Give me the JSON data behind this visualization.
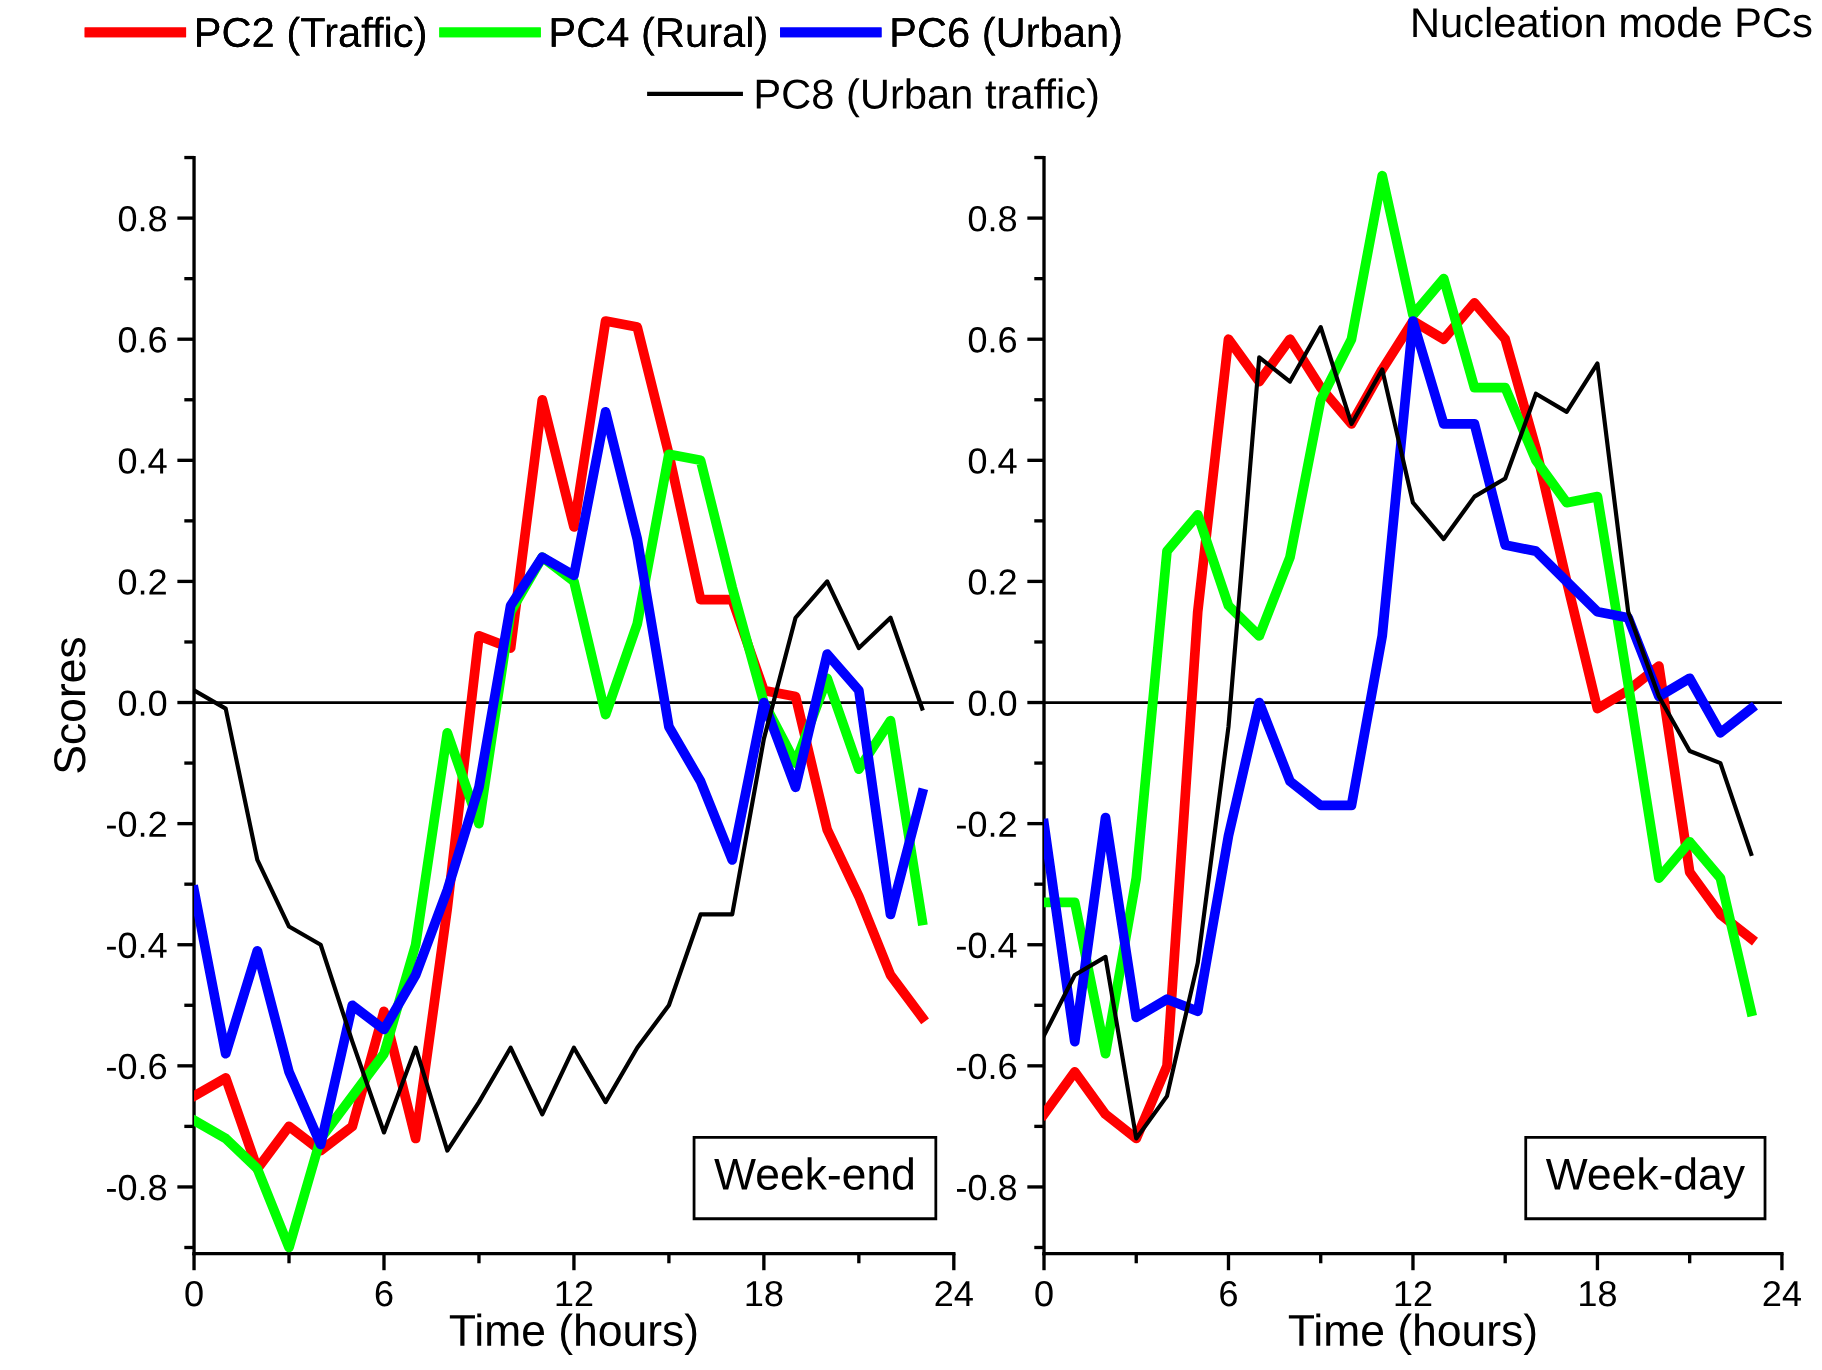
{
  "chart_data": [
    {
      "type": "line",
      "xlabel": "Time (hours)",
      "ylabel": "Scores",
      "legend_title": "Nucleation mode PCs",
      "legend": "top",
      "grid": false,
      "marker": "none",
      "line_style": "solid",
      "x": [
        0,
        1,
        2,
        3,
        4,
        5,
        6,
        7,
        8,
        9,
        10,
        11,
        12,
        13,
        14,
        15,
        16,
        17,
        18,
        19,
        20,
        21,
        22,
        23
      ],
      "xlim": [
        0,
        24
      ],
      "xticks": [
        0,
        6,
        12,
        18,
        24
      ],
      "ylim": [
        -0.91,
        0.9
      ],
      "yticks": [
        {
          "value": -0.8,
          "label": "-0.8"
        },
        {
          "value": -0.6,
          "label": "-0.6"
        },
        {
          "value": -0.4,
          "label": "-0.4"
        },
        {
          "value": -0.2,
          "label": "-0.2"
        },
        {
          "value": 0,
          "label": "0.0"
        },
        {
          "value": 0.2,
          "label": "0.2"
        },
        {
          "value": 0.4,
          "label": "0.4"
        },
        {
          "value": 0.6,
          "label": "0.6"
        },
        {
          "value": 0.8,
          "label": "0.8"
        }
      ],
      "ref_lines": [
        {
          "axis": "y",
          "value": 0,
          "color": "#000000"
        }
      ],
      "annotations": [
        "Week-end"
      ],
      "series": [
        {
          "name": "PC2 (Traffic)",
          "color": "#ff0000",
          "values": [
            -0.65,
            -0.62,
            -0.77,
            -0.7,
            -0.74,
            -0.7,
            -0.51,
            -0.72,
            -0.34,
            0.11,
            0.09,
            0.5,
            0.29,
            0.63,
            0.62,
            0.41,
            0.17,
            0.17,
            0.02,
            0.01,
            -0.21,
            -0.32,
            -0.45,
            -0.52
          ]
        },
        {
          "name": "PC4 (Rural)",
          "color": "#00ff00",
          "values": [
            -0.69,
            -0.72,
            -0.77,
            -0.9,
            -0.72,
            -0.65,
            -0.58,
            -0.4,
            -0.05,
            -0.2,
            0.15,
            0.24,
            0.2,
            -0.02,
            0.13,
            0.41,
            0.4,
            0.19,
            0.0,
            -0.1,
            0.04,
            -0.11,
            -0.03,
            -0.36
          ]
        },
        {
          "name": "PC6 (Urban)",
          "color": "#0000ff",
          "values": [
            -0.31,
            -0.58,
            -0.41,
            -0.61,
            -0.73,
            -0.5,
            -0.54,
            -0.45,
            -0.31,
            -0.14,
            0.16,
            0.24,
            0.21,
            0.48,
            0.27,
            -0.04,
            -0.13,
            -0.26,
            0.0,
            -0.14,
            0.08,
            0.02,
            -0.35,
            -0.15
          ]
        },
        {
          "name": "PC8 (Urban traffic)",
          "color": "#000000",
          "values": [
            0.02,
            -0.01,
            -0.26,
            -0.37,
            -0.4,
            -0.56,
            -0.71,
            -0.57,
            -0.74,
            -0.66,
            -0.57,
            -0.68,
            -0.57,
            -0.66,
            -0.57,
            -0.5,
            -0.35,
            -0.35,
            -0.06,
            0.14,
            0.2,
            0.09,
            0.14,
            -0.01
          ]
        }
      ]
    },
    {
      "type": "line",
      "xlabel": "Time (hours)",
      "grid": false,
      "marker": "none",
      "line_style": "solid",
      "x": [
        0,
        1,
        2,
        3,
        4,
        5,
        6,
        7,
        8,
        9,
        10,
        11,
        12,
        13,
        14,
        15,
        16,
        17,
        18,
        19,
        20,
        21,
        22,
        23
      ],
      "xlim": [
        0,
        24
      ],
      "xticks": [
        0,
        6,
        12,
        18,
        24
      ],
      "ylim": [
        -0.91,
        0.9
      ],
      "yticks": [
        {
          "value": -0.8,
          "label": "-0.8"
        },
        {
          "value": -0.6,
          "label": "-0.6"
        },
        {
          "value": -0.4,
          "label": "-0.4"
        },
        {
          "value": -0.2,
          "label": "-0.2"
        },
        {
          "value": 0,
          "label": "0.0"
        },
        {
          "value": 0.2,
          "label": "0.2"
        },
        {
          "value": 0.4,
          "label": "0.4"
        },
        {
          "value": 0.6,
          "label": "0.6"
        },
        {
          "value": 0.8,
          "label": "0.8"
        }
      ],
      "ref_lines": [
        {
          "axis": "y",
          "value": 0,
          "color": "#000000"
        }
      ],
      "annotations": [
        "Week-day"
      ],
      "series": [
        {
          "color": "#ff0000",
          "values": [
            -0.68,
            -0.61,
            -0.68,
            -0.72,
            -0.6,
            0.15,
            0.6,
            0.53,
            0.6,
            0.52,
            0.46,
            0.55,
            0.63,
            0.6,
            0.66,
            0.6,
            0.42,
            0.2,
            -0.01,
            0.02,
            0.06,
            -0.28,
            -0.35,
            -0.39
          ]
        },
        {
          "color": "#00ff00",
          "values": [
            -0.33,
            -0.33,
            -0.58,
            -0.29,
            0.25,
            0.31,
            0.16,
            0.11,
            0.24,
            0.5,
            0.6,
            0.87,
            0.64,
            0.7,
            0.52,
            0.52,
            0.4,
            0.33,
            0.34,
            0.03,
            -0.29,
            -0.23,
            -0.29,
            -0.51
          ]
        },
        {
          "color": "#0000ff",
          "values": [
            -0.2,
            -0.56,
            -0.19,
            -0.52,
            -0.49,
            -0.51,
            -0.22,
            0.0,
            -0.13,
            -0.17,
            -0.17,
            0.11,
            0.63,
            0.46,
            0.46,
            0.26,
            0.25,
            0.2,
            0.15,
            0.14,
            0.01,
            0.04,
            -0.05,
            -0.01
          ]
        },
        {
          "color": "#000000",
          "values": [
            -0.55,
            -0.45,
            -0.42,
            -0.72,
            -0.65,
            -0.43,
            -0.04,
            0.57,
            0.53,
            0.62,
            0.46,
            0.55,
            0.33,
            0.27,
            0.34,
            0.37,
            0.51,
            0.48,
            0.56,
            0.15,
            0.01,
            -0.08,
            -0.1,
            -0.25
          ]
        }
      ]
    }
  ]
}
